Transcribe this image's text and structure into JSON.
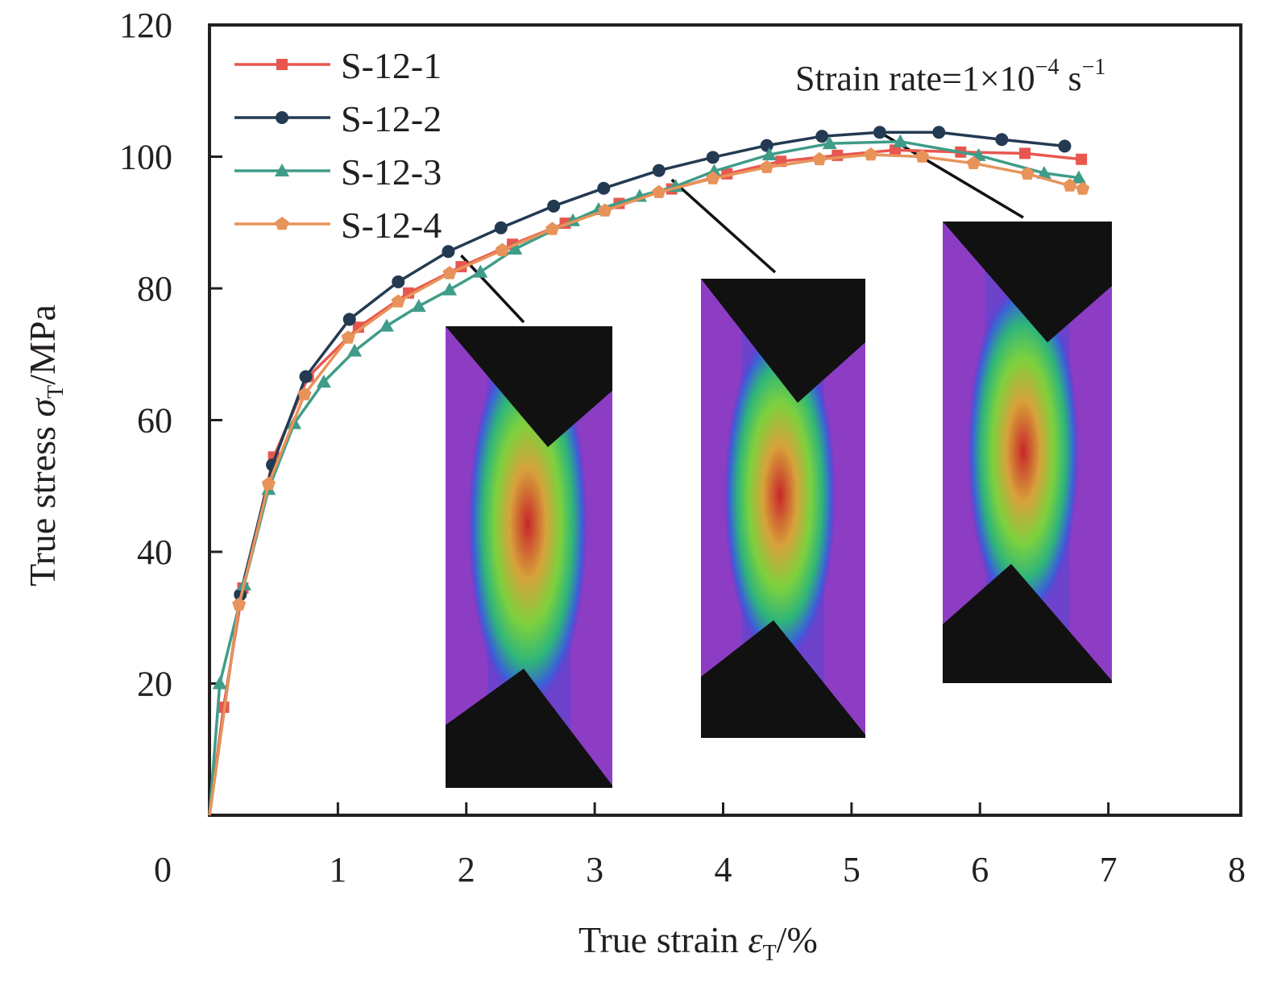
{
  "chart_data": {
    "type": "line",
    "title": "",
    "xlabel": "True strain εT/%",
    "xlabel_parts": {
      "main": "True strain ",
      "symbol": "ε",
      "sub": "T",
      "unit": "/%"
    },
    "ylabel": "True stress σT/MPa",
    "ylabel_parts": {
      "main": "True stress ",
      "symbol": "σ",
      "sub": "T",
      "unit": "/MPa"
    },
    "xlim": [
      0,
      8
    ],
    "ylim": [
      0,
      120
    ],
    "x_ticks": [
      0,
      1,
      2,
      3,
      4,
      5,
      6,
      7,
      8
    ],
    "x_tick_labels": [
      "0",
      "1",
      "2",
      "3",
      "4",
      "5",
      "6",
      "7",
      "8"
    ],
    "y_ticks": [
      20,
      40,
      60,
      80,
      100,
      120
    ],
    "y_tick_labels": [
      "20",
      "40",
      "60",
      "80",
      "100",
      "120"
    ],
    "grid": false,
    "legend_position": "top-left",
    "annotation": {
      "text": "Strain rate=1×10",
      "exp1": "−4",
      "unit": " s",
      "exp2": "−1"
    },
    "series": [
      {
        "name": "S-12-1",
        "color": "#e8574f",
        "marker": "square",
        "x": [
          0,
          0.11,
          0.26,
          0.5,
          0.77,
          1.16,
          1.55,
          1.96,
          2.36,
          2.77,
          3.19,
          3.6,
          4.03,
          4.45,
          4.89,
          5.34,
          5.85,
          6.35,
          6.79
        ],
        "y": [
          0,
          16.4,
          34.5,
          54.4,
          66.6,
          74.1,
          79.3,
          83.3,
          86.7,
          89.9,
          92.9,
          95.1,
          97.4,
          99.3,
          100.2,
          101.0,
          100.7,
          100.5,
          99.6
        ]
      },
      {
        "name": "S-12-2",
        "color": "#233a52",
        "marker": "circle",
        "x": [
          0,
          0.24,
          0.49,
          0.75,
          1.09,
          1.47,
          1.86,
          2.27,
          2.68,
          3.07,
          3.5,
          3.92,
          4.34,
          4.77,
          5.22,
          5.68,
          6.17,
          6.66
        ],
        "y": [
          0,
          33.5,
          53.2,
          66.6,
          75.3,
          81.0,
          85.6,
          89.2,
          92.5,
          95.2,
          97.9,
          99.9,
          101.7,
          103.1,
          103.7,
          103.7,
          102.6,
          101.6
        ]
      },
      {
        "name": "S-12-3",
        "color": "#3f9c88",
        "marker": "triangle",
        "x": [
          0,
          0.08,
          0.27,
          0.46,
          0.66,
          0.89,
          1.13,
          1.38,
          1.63,
          1.87,
          2.11,
          2.38,
          2.83,
          3.03,
          3.35,
          3.63,
          3.93,
          4.36,
          4.83,
          5.38,
          5.99,
          6.5,
          6.77
        ],
        "y": [
          0,
          20.0,
          35.0,
          49.5,
          59.5,
          65.8,
          70.5,
          74.3,
          77.3,
          79.8,
          82.5,
          86.0,
          90.3,
          92.0,
          94.0,
          95.5,
          97.8,
          100.3,
          102.0,
          102.3,
          100.2,
          97.5,
          96.8
        ]
      },
      {
        "name": "S-12-4",
        "color": "#e8935a",
        "marker": "pentagon",
        "x": [
          0,
          0.23,
          0.46,
          0.74,
          1.08,
          1.47,
          1.87,
          2.28,
          2.67,
          3.08,
          3.5,
          3.92,
          4.34,
          4.75,
          5.15,
          5.55,
          5.95,
          6.37,
          6.7,
          6.8
        ],
        "y": [
          0,
          32.0,
          50.3,
          63.9,
          72.5,
          78.0,
          82.3,
          85.8,
          89.0,
          91.8,
          94.6,
          96.7,
          98.4,
          99.6,
          100.3,
          100.0,
          99.0,
          97.4,
          95.6,
          95.1
        ]
      }
    ],
    "insets": [
      {
        "name": "dic-strain-map-1",
        "points_to": {
          "series": "S-12-1",
          "x": 1.96,
          "y": 85.0
        }
      },
      {
        "name": "dic-strain-map-2",
        "points_to": {
          "series": "S-12-1",
          "x": 3.6,
          "y": 96.5
        }
      },
      {
        "name": "dic-strain-map-3",
        "points_to": {
          "series": "S-12-2",
          "x": 5.22,
          "y": 103.7
        }
      }
    ]
  }
}
